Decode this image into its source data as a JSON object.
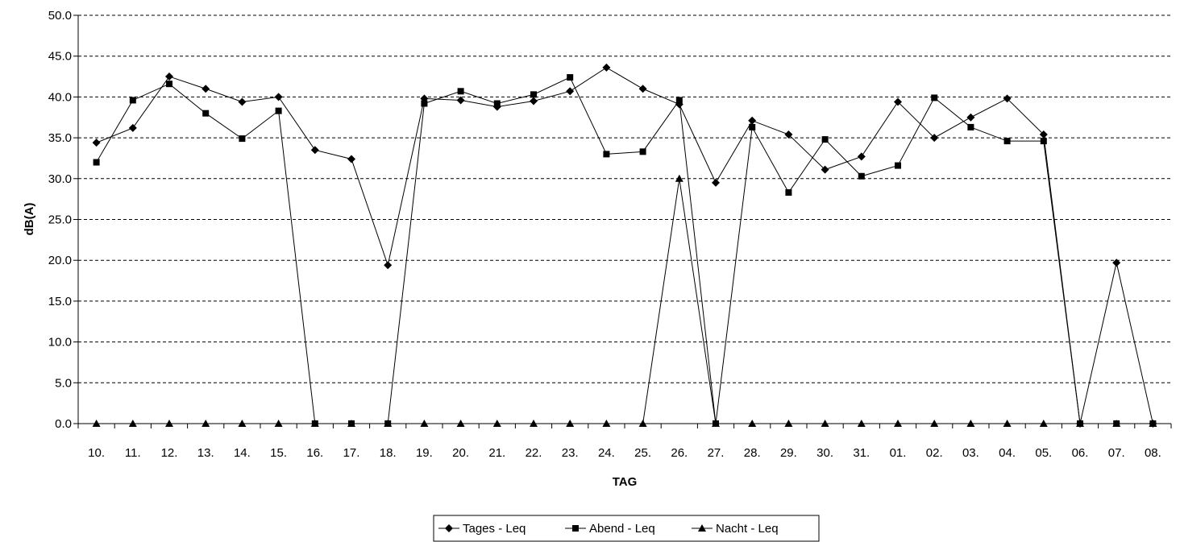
{
  "chart_data": {
    "type": "line",
    "xlabel": "TAG",
    "ylabel": "dB(A)",
    "ylim": [
      0,
      50
    ],
    "yticks": [
      "0.0",
      "5.0",
      "10.0",
      "15.0",
      "20.0",
      "25.0",
      "30.0",
      "35.0",
      "40.0",
      "45.0",
      "50.0"
    ],
    "grid": "horizontal-dashed",
    "legend_position": "bottom-center",
    "categories": [
      "10.",
      "11.",
      "12.",
      "13.",
      "14.",
      "15.",
      "16.",
      "17.",
      "18.",
      "19.",
      "20.",
      "21.",
      "22.",
      "23.",
      "24.",
      "25.",
      "26.",
      "27.",
      "28.",
      "29.",
      "30.",
      "31.",
      "01.",
      "02.",
      "03.",
      "04.",
      "05.",
      "06.",
      "07.",
      "08."
    ],
    "series": [
      {
        "name": "Tages - Leq",
        "marker": "diamond",
        "values": [
          34.4,
          36.2,
          42.5,
          41.0,
          39.4,
          40.0,
          33.5,
          32.4,
          19.4,
          39.8,
          39.6,
          38.8,
          39.5,
          40.7,
          43.6,
          41.0,
          39.1,
          29.5,
          37.1,
          35.4,
          31.1,
          32.7,
          39.4,
          35.0,
          37.5,
          39.8,
          35.4,
          0.0,
          19.7,
          0.0
        ]
      },
      {
        "name": "Abend - Leq",
        "marker": "square",
        "values": [
          32.0,
          39.6,
          41.6,
          38.0,
          34.9,
          38.3,
          0.0,
          0.0,
          0.0,
          39.2,
          40.7,
          39.2,
          40.3,
          42.4,
          33.0,
          33.3,
          39.6,
          0.0,
          36.3,
          28.3,
          34.8,
          30.3,
          31.6,
          39.9,
          36.3,
          34.6,
          34.6,
          0.0,
          0.0,
          0.0
        ]
      },
      {
        "name": "Nacht - Leq",
        "marker": "triangle",
        "values": [
          0.0,
          0.0,
          0.0,
          0.0,
          0.0,
          0.0,
          0.0,
          0.0,
          0.0,
          0.0,
          0.0,
          0.0,
          0.0,
          0.0,
          0.0,
          0.0,
          30.0,
          0.0,
          0.0,
          0.0,
          0.0,
          0.0,
          0.0,
          0.0,
          0.0,
          0.0,
          0.0,
          0.0,
          0.0,
          0.0
        ]
      }
    ],
    "colors": {
      "line": "#000000",
      "grid": "#000000",
      "background": "#ffffff"
    }
  }
}
